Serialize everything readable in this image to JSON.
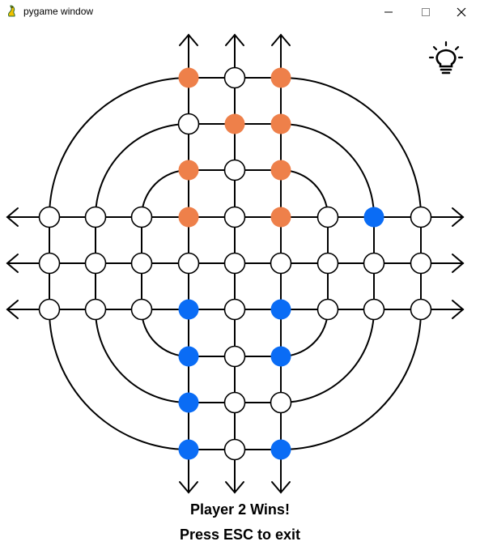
{
  "window": {
    "title": "pygame window",
    "controls": [
      "minimize",
      "maximize",
      "close"
    ]
  },
  "game": {
    "status_line1": "Player 2 Wins!",
    "status_line2": "Press ESC to exit",
    "hint_icon": "lightbulb-icon",
    "colors": {
      "player1": "#ee804a",
      "player2": "#0a6cf5",
      "empty": "#ffffff",
      "line": "#000000"
    },
    "board": {
      "rows": [
        "...OeO...",
        "...eOO...",
        "...OeO...",
        "eeeOeOeBe",
        "eeeeeeeee",
        "eeeBeBeee",
        "...BeB...",
        "...Bee...",
        "...BeB..."
      ]
    }
  }
}
